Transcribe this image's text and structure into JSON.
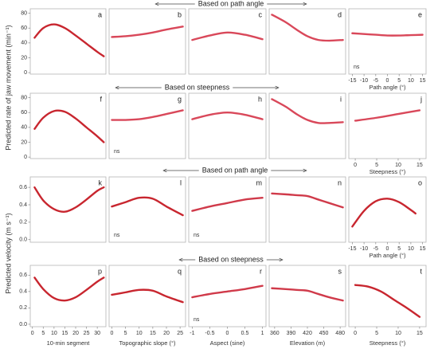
{
  "figure": {
    "section_labels": [
      "Based on path angle",
      "Based on steepness",
      "Based on path angle",
      "Based on steepness"
    ],
    "ylabels": [
      "Predicted rate of jaw movement (min⁻¹)",
      "Predicted velocity (m s⁻¹)"
    ]
  },
  "chart_data": [
    {
      "type": "line",
      "title": "a",
      "x": [
        1,
        5,
        10,
        15,
        20,
        25,
        30,
        33
      ],
      "values": [
        47,
        60,
        65,
        60,
        50,
        39,
        28,
        22
      ],
      "color": "#c8262f",
      "xlim": [
        -1,
        34
      ],
      "ylim": [
        -2,
        86
      ],
      "yticks": [
        0,
        20,
        40,
        60,
        80
      ]
    },
    {
      "type": "line",
      "title": "b",
      "x": [
        0,
        5,
        10,
        15,
        20,
        26
      ],
      "values": [
        48,
        49,
        51,
        54,
        58,
        62
      ],
      "color": "#d9485a",
      "xlim": [
        -1,
        27
      ],
      "ylim": [
        -2,
        86
      ]
    },
    {
      "type": "line",
      "title": "c",
      "x": [
        -1,
        -0.5,
        0,
        0.5,
        1
      ],
      "values": [
        44,
        50,
        54,
        51,
        45
      ],
      "color": "#d9485a",
      "xlim": [
        -1.1,
        1.1
      ],
      "ylim": [
        -2,
        86
      ]
    },
    {
      "type": "line",
      "title": "d",
      "x": [
        355,
        380,
        400,
        420,
        440,
        460,
        485
      ],
      "values": [
        78,
        68,
        58,
        49,
        44,
        43,
        44
      ],
      "color": "#d9485a",
      "xlim": [
        350,
        490
      ],
      "ylim": [
        -2,
        86
      ]
    },
    {
      "type": "line",
      "title": "e",
      "x": [
        -15,
        -10,
        -5,
        0,
        5,
        10,
        15
      ],
      "values": [
        53,
        52,
        51,
        50,
        50,
        50.5,
        51
      ],
      "color": "#d9485a",
      "xlim": [
        -16.5,
        16.5
      ],
      "ylim": [
        -2,
        86
      ],
      "xticks": [
        -15,
        -10,
        -5,
        0,
        5,
        10,
        15
      ],
      "xlabel": "Path angle (°)",
      "note": "ns"
    },
    {
      "type": "line",
      "title": "f",
      "x": [
        1,
        5,
        10,
        15,
        20,
        25,
        30,
        33
      ],
      "values": [
        38,
        53,
        62,
        61,
        52,
        40,
        28,
        20
      ],
      "color": "#c8262f",
      "xlim": [
        -1,
        34
      ],
      "ylim": [
        -2,
        86
      ],
      "yticks": [
        0,
        20,
        40,
        60,
        80
      ]
    },
    {
      "type": "line",
      "title": "g",
      "x": [
        0,
        5,
        10,
        15,
        20,
        26
      ],
      "values": [
        50,
        50,
        51,
        54,
        58,
        63
      ],
      "color": "#d9485a",
      "xlim": [
        -1,
        27
      ],
      "ylim": [
        -2,
        86
      ],
      "note": "ns"
    },
    {
      "type": "line",
      "title": "h",
      "x": [
        -1,
        -0.5,
        0,
        0.5,
        1
      ],
      "values": [
        51,
        57,
        60,
        57,
        51
      ],
      "color": "#d9485a",
      "xlim": [
        -1.1,
        1.1
      ],
      "ylim": [
        -2,
        86
      ]
    },
    {
      "type": "line",
      "title": "i",
      "x": [
        355,
        380,
        400,
        420,
        440,
        460,
        485
      ],
      "values": [
        78,
        68,
        58,
        50,
        46,
        46,
        47
      ],
      "color": "#d9485a",
      "xlim": [
        350,
        490
      ],
      "ylim": [
        -2,
        86
      ]
    },
    {
      "type": "line",
      "title": "j",
      "x": [
        0,
        5,
        10,
        15
      ],
      "values": [
        49,
        53,
        58,
        63
      ],
      "color": "#d9485a",
      "xlim": [
        -1.5,
        16.5
      ],
      "ylim": [
        -2,
        86
      ],
      "xticks": [
        0,
        5,
        10,
        15
      ],
      "xlabel": "Steepness  (°)"
    },
    {
      "type": "line",
      "title": "k",
      "x": [
        1,
        5,
        10,
        15,
        20,
        25,
        30,
        33
      ],
      "values": [
        0.6,
        0.45,
        0.35,
        0.32,
        0.37,
        0.46,
        0.56,
        0.6
      ],
      "color": "#c8262f",
      "xlim": [
        -1,
        34
      ],
      "ylim": [
        -0.03,
        0.72
      ],
      "yticks": [
        {
          "value": 0,
          "label": "0.0"
        },
        0.2,
        0.4,
        0.6
      ]
    },
    {
      "type": "line",
      "title": "l",
      "x": [
        0,
        5,
        10,
        15,
        20,
        26
      ],
      "values": [
        0.38,
        0.43,
        0.48,
        0.47,
        0.38,
        0.28
      ],
      "color": "#c8262f",
      "xlim": [
        -1,
        27
      ],
      "ylim": [
        -0.03,
        0.72
      ],
      "note": "ns"
    },
    {
      "type": "line",
      "title": "m",
      "x": [
        -1,
        -0.5,
        0,
        0.5,
        1
      ],
      "values": [
        0.33,
        0.38,
        0.42,
        0.46,
        0.48
      ],
      "color": "#d03a4a",
      "xlim": [
        -1.1,
        1.1
      ],
      "ylim": [
        -0.03,
        0.72
      ],
      "note": "ns"
    },
    {
      "type": "line",
      "title": "n",
      "x": [
        355,
        380,
        400,
        420,
        440,
        460,
        485
      ],
      "values": [
        0.53,
        0.52,
        0.51,
        0.5,
        0.46,
        0.42,
        0.37
      ],
      "color": "#d03a4a",
      "xlim": [
        350,
        490
      ],
      "ylim": [
        -0.03,
        0.72
      ]
    },
    {
      "type": "line",
      "title": "o",
      "x": [
        -15,
        -10,
        -5,
        0,
        5,
        10,
        12
      ],
      "values": [
        0.15,
        0.33,
        0.44,
        0.47,
        0.43,
        0.34,
        0.3
      ],
      "color": "#c8262f",
      "xlim": [
        -16.5,
        16.5
      ],
      "ylim": [
        -0.03,
        0.72
      ],
      "xticks": [
        -15,
        -10,
        -5,
        0,
        5,
        10,
        15
      ],
      "xlabel": "Path angle (°)"
    },
    {
      "type": "line",
      "title": "p",
      "x": [
        1,
        5,
        10,
        15,
        20,
        25,
        30,
        33
      ],
      "values": [
        0.57,
        0.43,
        0.32,
        0.29,
        0.33,
        0.42,
        0.52,
        0.57
      ],
      "color": "#c8262f",
      "xlim": [
        -1,
        34
      ],
      "ylim": [
        -0.03,
        0.72
      ],
      "yticks": [
        {
          "value": 0,
          "label": "0.0"
        },
        0.2,
        0.4,
        0.6
      ],
      "xticks": [
        0,
        5,
        10,
        15,
        20,
        25,
        30
      ],
      "xlabel": "10-min segment"
    },
    {
      "type": "line",
      "title": "q",
      "x": [
        0,
        5,
        10,
        15,
        20,
        26
      ],
      "values": [
        0.36,
        0.39,
        0.42,
        0.41,
        0.34,
        0.27
      ],
      "color": "#c8262f",
      "xlim": [
        -1,
        27
      ],
      "ylim": [
        -0.03,
        0.72
      ],
      "xticks": [
        0,
        5,
        10,
        15,
        20,
        25
      ],
      "xlabel": "Topographic slope (°)"
    },
    {
      "type": "line",
      "title": "r",
      "x": [
        -1,
        -0.5,
        0,
        0.5,
        1
      ],
      "values": [
        0.33,
        0.37,
        0.4,
        0.43,
        0.47
      ],
      "color": "#d03a4a",
      "xlim": [
        -1.1,
        1.1
      ],
      "ylim": [
        -0.03,
        0.72
      ],
      "xticks": [
        -1,
        -0.5,
        0,
        0.5,
        1
      ],
      "xlabel": "Aspect (sine)",
      "note": "ns"
    },
    {
      "type": "line",
      "title": "s",
      "x": [
        355,
        380,
        400,
        420,
        440,
        460,
        485
      ],
      "values": [
        0.44,
        0.43,
        0.42,
        0.41,
        0.37,
        0.33,
        0.29
      ],
      "color": "#d03a4a",
      "xlim": [
        350,
        490
      ],
      "ylim": [
        -0.03,
        0.72
      ],
      "xticks": [
        360,
        390,
        420,
        450,
        480
      ],
      "xlabel": "Elevation (m)"
    },
    {
      "type": "line",
      "title": "t",
      "x": [
        0,
        3,
        6,
        9,
        12,
        15
      ],
      "values": [
        0.48,
        0.46,
        0.4,
        0.3,
        0.2,
        0.09
      ],
      "color": "#c8262f",
      "xlim": [
        -1.5,
        16.5
      ],
      "ylim": [
        -0.03,
        0.72
      ],
      "xticks": [
        0,
        5,
        10,
        15
      ],
      "xlabel": "Steepness  (°)"
    }
  ]
}
